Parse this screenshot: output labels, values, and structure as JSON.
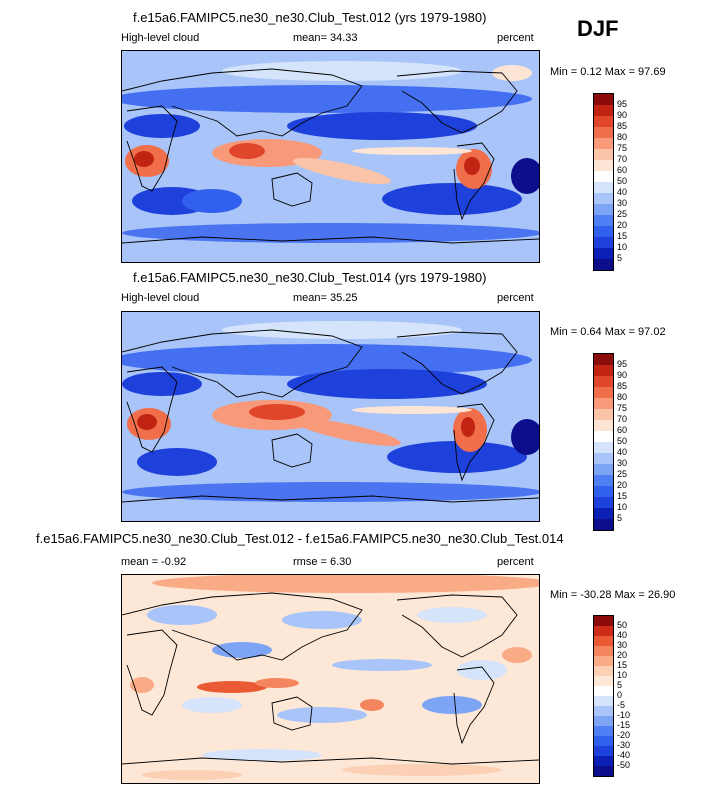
{
  "season": "DJF",
  "panels": [
    {
      "title": "f.e15a6.FAMIPC5.ne30_ne30.Club_Test.012 (yrs 1979-1980)",
      "left_label": "High-level cloud",
      "center_label": "mean=  34.33",
      "units": "percent",
      "minmax": "Min =   0.12 Max =  97.69",
      "colorbar_labels": [
        "95",
        "90",
        "85",
        "80",
        "75",
        "70",
        "60",
        "50",
        "40",
        "30",
        "25",
        "20",
        "15",
        "10",
        "5"
      ]
    },
    {
      "title": "f.e15a6.FAMIPC5.ne30_ne30.Club_Test.014 (yrs 1979-1980)",
      "left_label": "High-level cloud",
      "center_label": "mean=  35.25",
      "units": "percent",
      "minmax": "Min =   0.64 Max =  97.02",
      "colorbar_labels": [
        "95",
        "90",
        "85",
        "80",
        "75",
        "70",
        "60",
        "50",
        "40",
        "30",
        "25",
        "20",
        "15",
        "10",
        "5"
      ]
    },
    {
      "title": "f.e15a6.FAMIPC5.ne30_ne30.Club_Test.012 - f.e15a6.FAMIPC5.ne30_ne30.Club_Test.014",
      "left_label": "mean =  -0.92",
      "center_label": "rmse =   6.30",
      "units": "percent",
      "minmax": "Min = -30.28 Max =  26.90",
      "colorbar_labels": [
        "50",
        "40",
        "30",
        "20",
        "15",
        "10",
        "5",
        "0",
        "-5",
        "-10",
        "-15",
        "-20",
        "-30",
        "-40",
        "-50"
      ]
    }
  ],
  "colors": {
    "abs_scale": [
      "#0d0e8c",
      "#0b1fb4",
      "#1e40db",
      "#3260ee",
      "#4f7ff4",
      "#7ea5f5",
      "#a8c4f8",
      "#d6e4fb",
      "#fde5d6",
      "#fbc3a8",
      "#f89a79",
      "#f06e49",
      "#e0472a",
      "#c22414",
      "#8b0c0a"
    ],
    "diff_scale": [
      "#0d0e8c",
      "#0b1fb4",
      "#1e40db",
      "#3260ee",
      "#4f7ff4",
      "#7ea5f5",
      "#a8c4f8",
      "#d6e4fb",
      "#fde8d8",
      "#fcd0b5",
      "#f9ab86",
      "#f5855f",
      "#ea5b35",
      "#cc2c18",
      "#8b0c0a"
    ],
    "abs_background": "#a8c4f8",
    "diff_background": "#fde8d8"
  },
  "chart_data": [
    {
      "type": "heatmap",
      "title": "f.e15a6.FAMIPC5.ne30_ne30.Club_Test.012 (yrs 1979-1980)",
      "variable": "High-level cloud",
      "units": "percent",
      "mean": 34.33,
      "min": 0.12,
      "max": 97.69,
      "contour_levels": [
        5,
        10,
        15,
        20,
        25,
        30,
        40,
        50,
        60,
        70,
        75,
        80,
        85,
        90,
        95
      ]
    },
    {
      "type": "heatmap",
      "title": "f.e15a6.FAMIPC5.ne30_ne30.Club_Test.014 (yrs 1979-1980)",
      "variable": "High-level cloud",
      "units": "percent",
      "mean": 35.25,
      "min": 0.64,
      "max": 97.02,
      "contour_levels": [
        5,
        10,
        15,
        20,
        25,
        30,
        40,
        50,
        60,
        70,
        75,
        80,
        85,
        90,
        95
      ]
    },
    {
      "type": "heatmap",
      "title": "f.e15a6.FAMIPC5.ne30_ne30.Club_Test.012 - f.e15a6.FAMIPC5.ne30_ne30.Club_Test.014",
      "units": "percent",
      "mean": -0.92,
      "rmse": 6.3,
      "min": -30.28,
      "max": 26.9,
      "contour_levels": [
        -50,
        -40,
        -30,
        -20,
        -15,
        -10,
        -5,
        0,
        5,
        10,
        15,
        20,
        30,
        40,
        50
      ]
    }
  ]
}
